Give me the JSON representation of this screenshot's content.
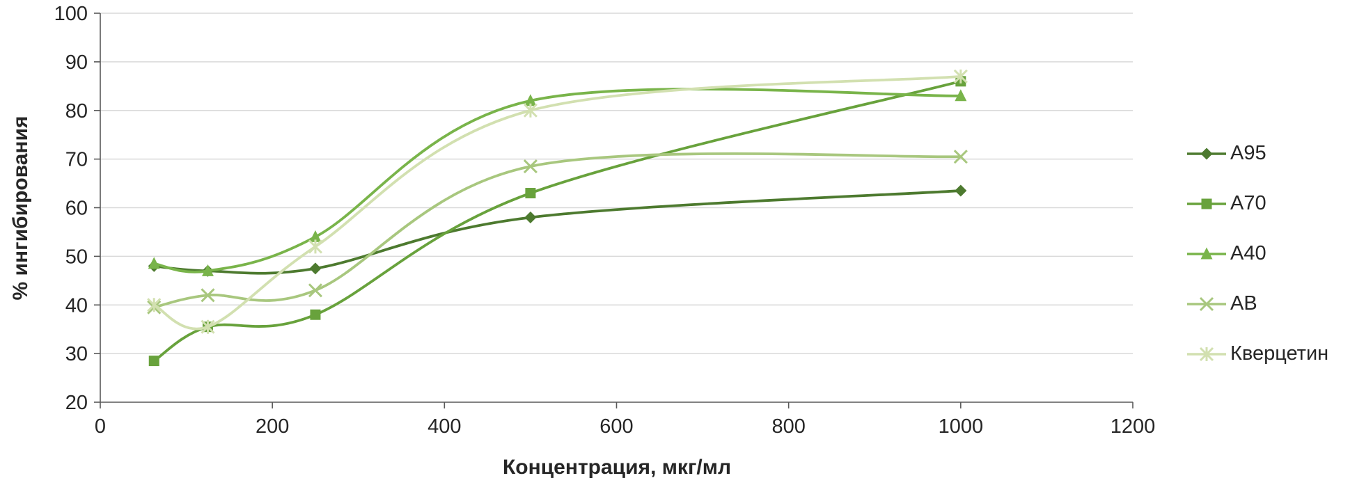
{
  "chart_data": {
    "type": "line",
    "title": "",
    "xlabel": "Концентрация, мкг/мл",
    "ylabel": "% ингибирования",
    "xlim": [
      0,
      1200
    ],
    "ylim": [
      20,
      100
    ],
    "x_ticks": [
      0,
      200,
      400,
      600,
      800,
      1000,
      1200
    ],
    "y_ticks": [
      20,
      30,
      40,
      50,
      60,
      70,
      80,
      90,
      100
    ],
    "grid": "horizontal",
    "legend_position": "right",
    "line_style": "smooth",
    "x": [
      62.5,
      125,
      250,
      500,
      1000
    ],
    "series": [
      {
        "name": "А95",
        "marker": "diamond",
        "color": "#4d7a2f",
        "values": [
          48,
          47,
          47.5,
          58,
          63.5
        ]
      },
      {
        "name": "А70",
        "marker": "square",
        "color": "#68a23c",
        "values": [
          28.5,
          35.5,
          38,
          63,
          86
        ]
      },
      {
        "name": "А40",
        "marker": "triangle",
        "color": "#79b44a",
        "values": [
          48.5,
          47,
          54,
          82,
          83
        ]
      },
      {
        "name": "АВ",
        "marker": "x",
        "color": "#a8c77e",
        "values": [
          39.5,
          42,
          43,
          68.5,
          70.5
        ]
      },
      {
        "name": "Кверцетин",
        "marker": "star",
        "color": "#d2e0b0",
        "values": [
          40,
          35.5,
          52,
          80,
          87
        ]
      }
    ]
  }
}
